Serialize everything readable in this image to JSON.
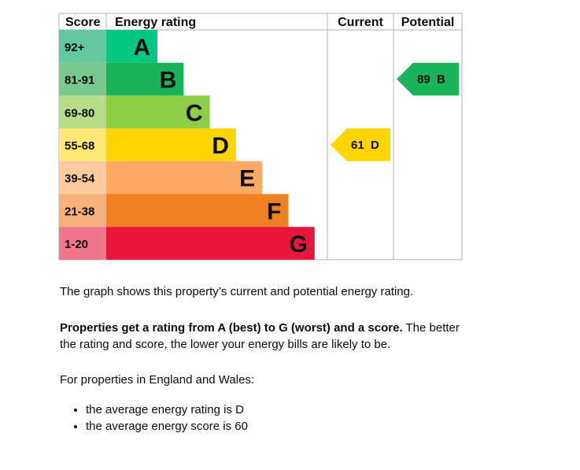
{
  "chart_data": {
    "type": "bar",
    "headers": {
      "score": "Score",
      "rating": "Energy rating",
      "current": "Current",
      "potential": "Potential"
    },
    "bands": [
      {
        "range": "92+",
        "letter": "A",
        "color": "#00c781",
        "score_bg": "#64c7a0",
        "level": 1
      },
      {
        "range": "81-91",
        "letter": "B",
        "color": "#19b459",
        "score_bg": "#79c88e",
        "level": 2
      },
      {
        "range": "69-80",
        "letter": "C",
        "color": "#8dce46",
        "score_bg": "#b7dd8a",
        "level": 3
      },
      {
        "range": "55-68",
        "letter": "D",
        "color": "#ffd500",
        "score_bg": "#ffe873",
        "level": 4
      },
      {
        "range": "39-54",
        "letter": "E",
        "color": "#fcaa65",
        "score_bg": "#fdcaa0",
        "level": 5
      },
      {
        "range": "21-38",
        "letter": "F",
        "color": "#ef8023",
        "score_bg": "#f5b27c",
        "level": 6
      },
      {
        "range": "1-20",
        "letter": "G",
        "color": "#e9153b",
        "score_bg": "#f0768b",
        "level": 7
      }
    ],
    "current": {
      "score": 61,
      "letter": "D",
      "label": "61  D",
      "color": "#ffd500",
      "text_color": "#0b0c0c"
    },
    "potential": {
      "score": 89,
      "letter": "B",
      "label": "89  B",
      "color": "#19b459",
      "text_color": "#0b0c0c"
    }
  },
  "text": {
    "p1": "The graph shows this property’s current and potential energy rating.",
    "p2_bold": "Properties get a rating from A (best) to G (worst) and a score.",
    "p2_rest_line1": " The better",
    "p2_line2": "the rating and score, the lower your energy bills are likely to be.",
    "p3": "For properties in England and Wales:",
    "bullets": [
      "the average energy rating is D",
      "the average energy score is 60"
    ]
  }
}
